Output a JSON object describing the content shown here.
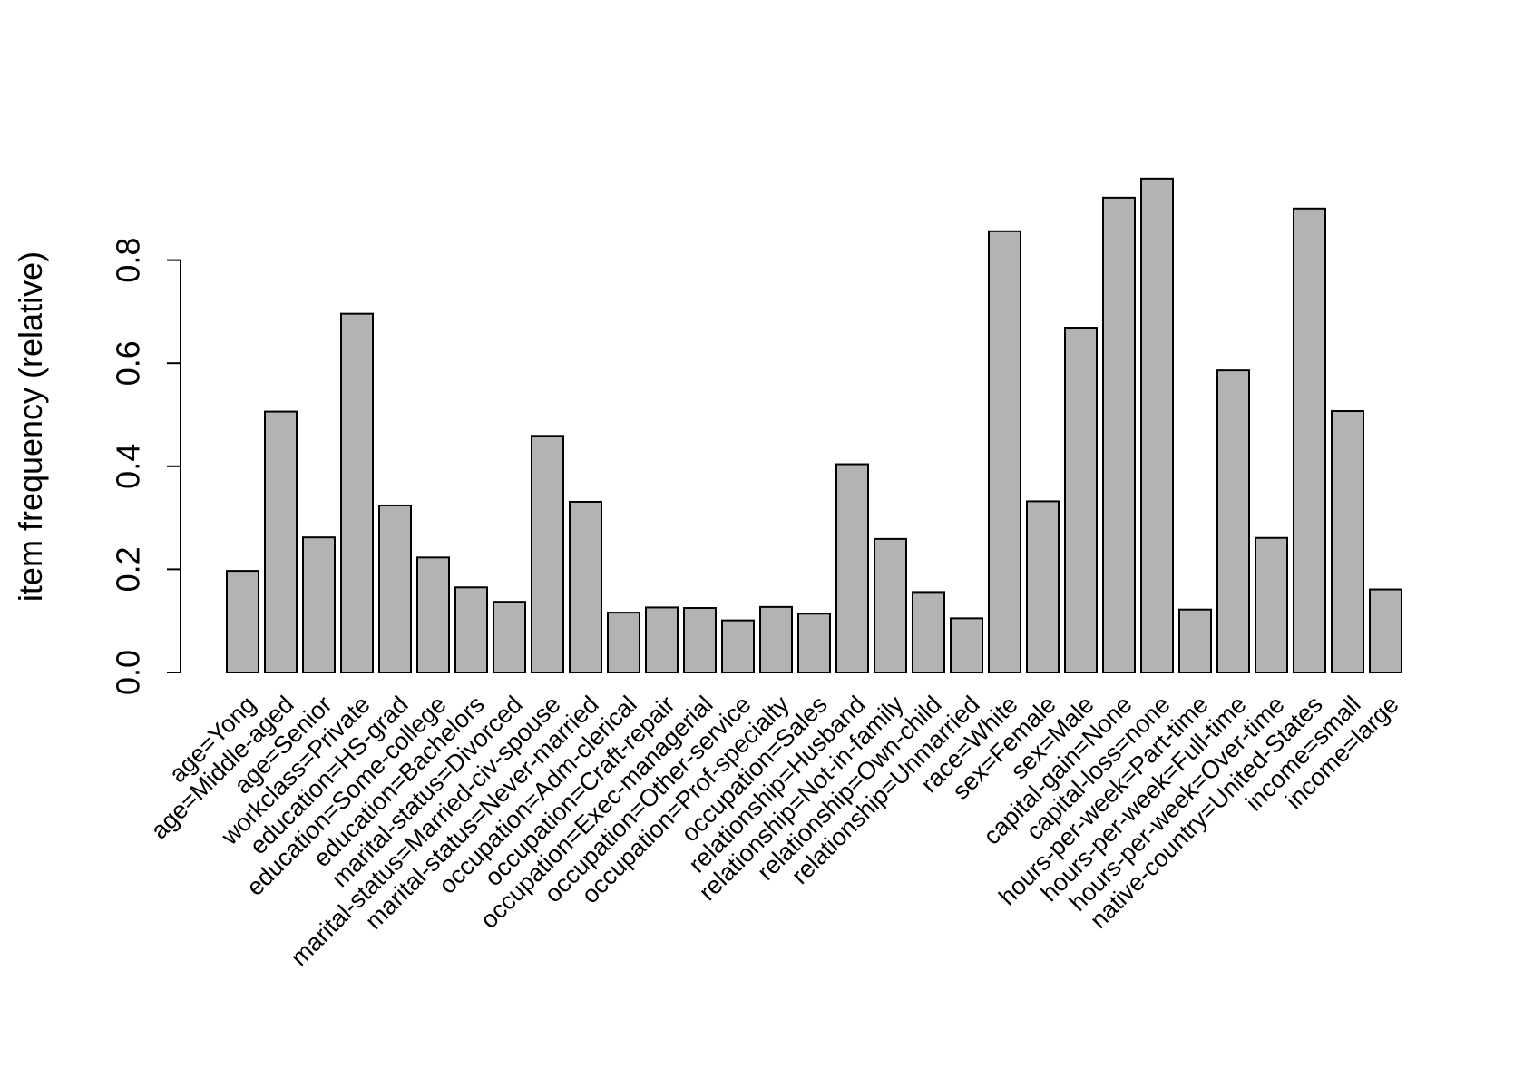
{
  "chart_data": {
    "type": "bar",
    "title": "",
    "xlabel": "",
    "ylabel": "item frequency (relative)",
    "ylim": [
      0,
      0.98
    ],
    "yticks": [
      0.0,
      0.2,
      0.4,
      0.6,
      0.8
    ],
    "ytick_labels": [
      "0.0",
      "0.2",
      "0.4",
      "0.6",
      "0.8"
    ],
    "grid": false,
    "bar_color": "#b3b3b3",
    "categories": [
      "age=Yong",
      "age=Middle-aged",
      "age=Senior",
      "workclass=Private",
      "education=HS-grad",
      "education=Some-college",
      "education=Bachelors",
      "marital-status=Divorced",
      "marital-status=Married-civ-spouse",
      "marital-status=Never-married",
      "occupation=Adm-clerical",
      "occupation=Craft-repair",
      "occupation=Exec-managerial",
      "occupation=Other-service",
      "occupation=Prof-specialty",
      "occupation=Sales",
      "relationship=Husband",
      "relationship=Not-in-family",
      "relationship=Own-child",
      "relationship=Unmarried",
      "race=White",
      "sex=Female",
      "sex=Male",
      "capital-gain=None",
      "capital-loss=none",
      "hours-per-week=Part-time",
      "hours-per-week=Full-time",
      "hours-per-week=Over-time",
      "native-country=United-States",
      "income=small",
      "income=large"
    ],
    "values": [
      0.197,
      0.506,
      0.262,
      0.696,
      0.324,
      0.223,
      0.165,
      0.137,
      0.459,
      0.331,
      0.116,
      0.126,
      0.125,
      0.101,
      0.127,
      0.114,
      0.404,
      0.259,
      0.156,
      0.105,
      0.856,
      0.332,
      0.669,
      0.921,
      0.958,
      0.122,
      0.586,
      0.261,
      0.9,
      0.507,
      0.161
    ]
  }
}
